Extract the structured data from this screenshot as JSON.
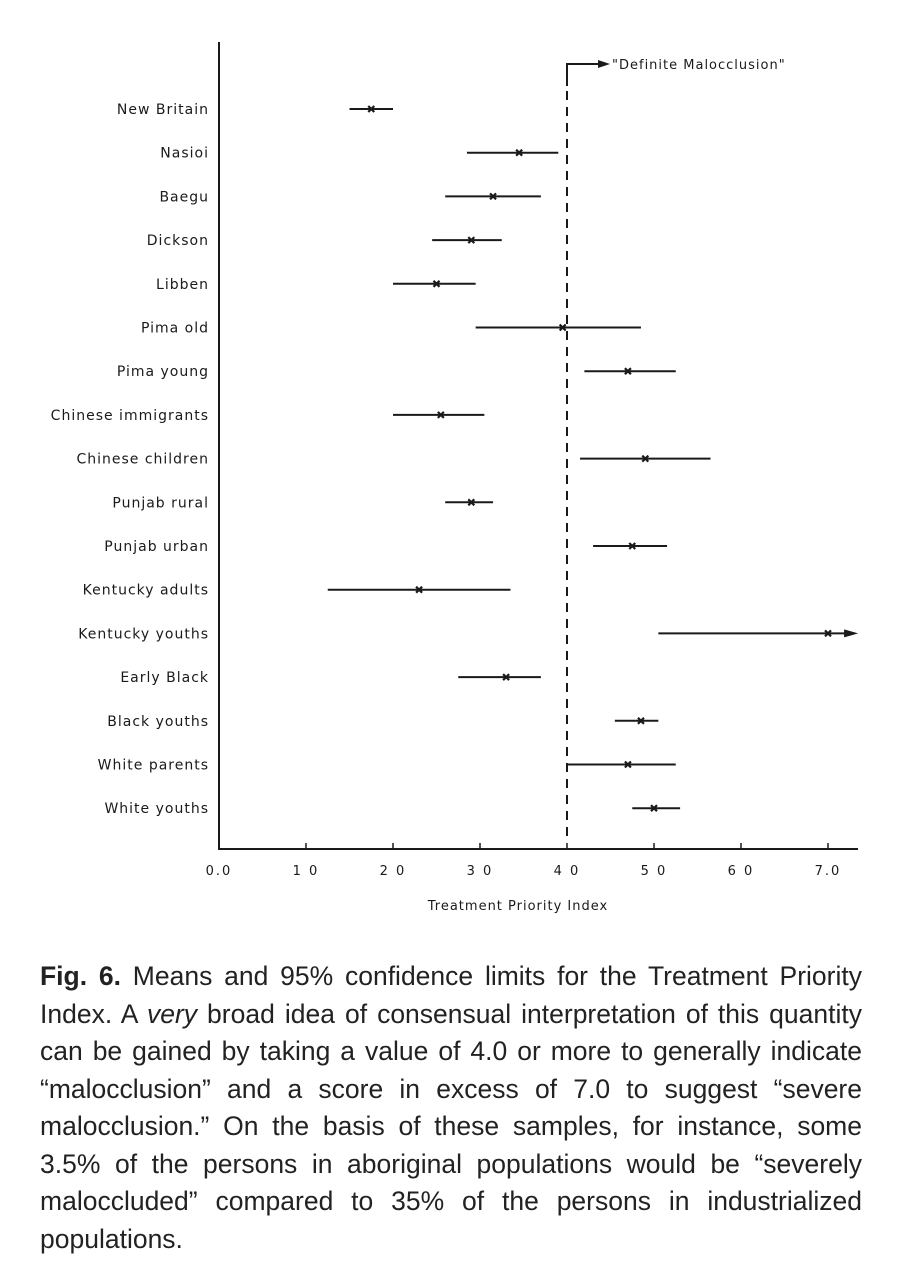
{
  "chart_data": {
    "type": "errorbar",
    "xlabel": "Treatment Priority Index",
    "xlim": [
      0,
      7.3
    ],
    "x_ticks": [
      0,
      1,
      2,
      3,
      4,
      5,
      6,
      7
    ],
    "x_tick_labels": [
      "0.0",
      "1 0",
      "2 0",
      "3 0",
      "4 0",
      "5 0",
      "6 0",
      "7.0"
    ],
    "reference_line": {
      "x": 4.0,
      "style": "dashed",
      "label": "\"Definite Malocclusion\""
    },
    "categories": [
      "New Britain",
      "Nasioi",
      "Baegu",
      "Dickson",
      "Libben",
      "Pima old",
      "Pima young",
      "Chinese immigrants",
      "Chinese children",
      "Punjab rural",
      "Punjab urban",
      "Kentucky adults",
      "Kentucky youths",
      "Early Black",
      "Black youths",
      "White parents",
      "White youths"
    ],
    "series": [
      {
        "mean": [
          1.75,
          3.45,
          3.15,
          2.9,
          2.5,
          3.95,
          4.7,
          2.55,
          4.9,
          2.9,
          4.75,
          2.3,
          7.0,
          3.3,
          4.85,
          4.7,
          5.0
        ],
        "lower": [
          1.5,
          2.85,
          2.6,
          2.45,
          2.0,
          2.95,
          4.2,
          2.0,
          4.15,
          2.6,
          4.3,
          1.25,
          5.05,
          2.75,
          4.55,
          4.0,
          4.75
        ],
        "upper": [
          2.0,
          3.9,
          3.7,
          3.25,
          2.95,
          4.85,
          5.25,
          3.05,
          5.65,
          3.15,
          5.15,
          3.35,
          7.3,
          3.7,
          5.05,
          5.25,
          5.3
        ]
      }
    ]
  },
  "caption": {
    "fig_label": "Fig. 6.",
    "text_1": " Means and 95% confidence limits for the Treatment Priority Index. A ",
    "text_italic": "very",
    "text_2": " broad idea of consensual interpretation of this quantity can be gained by taking a value of 4.0 or more to generally indicate “malocclusion” and a score in excess of 7.0 to suggest “severe malocclusion.” On the basis of these samples, for instance, some 3.5% of the persons in aboriginal populations would be “severely maloccluded” compared to 35% of the persons in industrialized populations."
  }
}
